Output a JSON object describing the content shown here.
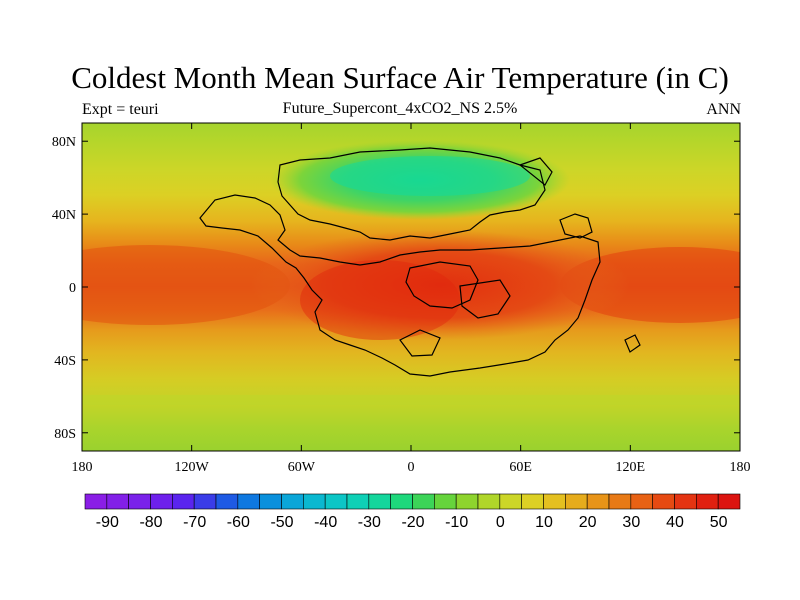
{
  "header": {
    "title": "Coldest Month Mean Surface Air Temperature (in C)",
    "left_label": "Expt = teuri",
    "center_label": "Future_Supercont_4xCO2_NS 2.5%",
    "right_label": "ANN"
  },
  "map": {
    "x_ticks": [
      "180",
      "120W",
      "60W",
      "0",
      "60E",
      "120E",
      "180"
    ],
    "y_ticks": [
      "80N",
      "40N",
      "0",
      "40S",
      "80S"
    ]
  },
  "colorbar": {
    "labels": [
      "-90",
      "-80",
      "-70",
      "-60",
      "-50",
      "-40",
      "-30",
      "-20",
      "-10",
      "0",
      "10",
      "20",
      "30",
      "40",
      "50"
    ],
    "colors": [
      "#8a1ee6",
      "#8220e8",
      "#7a22ea",
      "#6e20ec",
      "#5a24ee",
      "#3a3ce8",
      "#1e5ae4",
      "#0e78e0",
      "#0a90dc",
      "#0aa6d8",
      "#0ab8d0",
      "#0cc6c6",
      "#0ed0b6",
      "#14d69c",
      "#1ed87c",
      "#3cd458",
      "#66d43c",
      "#8ed42e",
      "#b0d62a",
      "#ccd628",
      "#dcd024",
      "#e4c020",
      "#e6ac1c",
      "#e89418",
      "#e87a16",
      "#e86214",
      "#e64a12",
      "#e43412",
      "#e02010",
      "#dc1410"
    ]
  }
}
